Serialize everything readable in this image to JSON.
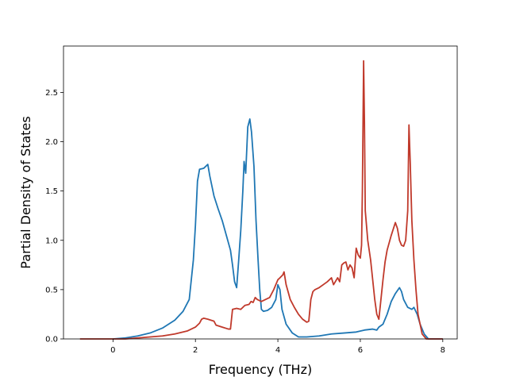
{
  "chart_data": {
    "type": "line",
    "title": "",
    "xlabel": "Frequency (THz)",
    "ylabel": "Partial Density of States",
    "xlim": [
      -1.2,
      8.35
    ],
    "ylim": [
      0,
      2.97
    ],
    "xticks": [
      0,
      2,
      4,
      6,
      8
    ],
    "yticks": [
      0.0,
      0.5,
      1.0,
      1.5,
      2.0,
      2.5
    ],
    "grid": false,
    "legend": "none",
    "series": [
      {
        "color": "#1f77b4",
        "points": [
          [
            0.0,
            0.0
          ],
          [
            0.3,
            0.01
          ],
          [
            0.6,
            0.03
          ],
          [
            0.9,
            0.06
          ],
          [
            1.2,
            0.11
          ],
          [
            1.5,
            0.19
          ],
          [
            1.7,
            0.28
          ],
          [
            1.85,
            0.4
          ],
          [
            1.9,
            0.6
          ],
          [
            1.95,
            0.8
          ],
          [
            2.0,
            1.15
          ],
          [
            2.05,
            1.6
          ],
          [
            2.1,
            1.72
          ],
          [
            2.2,
            1.73
          ],
          [
            2.3,
            1.77
          ],
          [
            2.35,
            1.65
          ],
          [
            2.45,
            1.45
          ],
          [
            2.55,
            1.32
          ],
          [
            2.65,
            1.2
          ],
          [
            2.75,
            1.05
          ],
          [
            2.85,
            0.9
          ],
          [
            2.9,
            0.75
          ],
          [
            2.95,
            0.58
          ],
          [
            3.0,
            0.52
          ],
          [
            3.05,
            0.8
          ],
          [
            3.1,
            1.1
          ],
          [
            3.15,
            1.5
          ],
          [
            3.18,
            1.8
          ],
          [
            3.22,
            1.68
          ],
          [
            3.27,
            2.15
          ],
          [
            3.32,
            2.23
          ],
          [
            3.36,
            2.1
          ],
          [
            3.42,
            1.75
          ],
          [
            3.47,
            1.2
          ],
          [
            3.52,
            0.8
          ],
          [
            3.56,
            0.5
          ],
          [
            3.6,
            0.3
          ],
          [
            3.65,
            0.28
          ],
          [
            3.75,
            0.29
          ],
          [
            3.85,
            0.32
          ],
          [
            3.95,
            0.4
          ],
          [
            4.0,
            0.55
          ],
          [
            4.05,
            0.5
          ],
          [
            4.1,
            0.3
          ],
          [
            4.2,
            0.15
          ],
          [
            4.35,
            0.06
          ],
          [
            4.5,
            0.02
          ],
          [
            4.7,
            0.02
          ],
          [
            5.0,
            0.03
          ],
          [
            5.3,
            0.05
          ],
          [
            5.6,
            0.06
          ],
          [
            5.9,
            0.07
          ],
          [
            6.1,
            0.09
          ],
          [
            6.3,
            0.1
          ],
          [
            6.4,
            0.09
          ],
          [
            6.45,
            0.12
          ],
          [
            6.55,
            0.15
          ],
          [
            6.65,
            0.25
          ],
          [
            6.75,
            0.38
          ],
          [
            6.85,
            0.46
          ],
          [
            6.95,
            0.52
          ],
          [
            7.0,
            0.48
          ],
          [
            7.05,
            0.4
          ],
          [
            7.15,
            0.32
          ],
          [
            7.25,
            0.3
          ],
          [
            7.3,
            0.32
          ],
          [
            7.38,
            0.25
          ],
          [
            7.45,
            0.15
          ],
          [
            7.55,
            0.05
          ],
          [
            7.65,
            0.0
          ],
          [
            8.0,
            0.0
          ]
        ]
      },
      {
        "color": "#c0392b",
        "points": [
          [
            -0.8,
            0.0
          ],
          [
            0.0,
            0.0
          ],
          [
            0.3,
            0.0
          ],
          [
            0.6,
            0.01
          ],
          [
            0.9,
            0.02
          ],
          [
            1.2,
            0.03
          ],
          [
            1.5,
            0.05
          ],
          [
            1.8,
            0.08
          ],
          [
            2.0,
            0.12
          ],
          [
            2.1,
            0.16
          ],
          [
            2.15,
            0.2
          ],
          [
            2.2,
            0.21
          ],
          [
            2.3,
            0.2
          ],
          [
            2.45,
            0.18
          ],
          [
            2.5,
            0.14
          ],
          [
            2.65,
            0.12
          ],
          [
            2.8,
            0.1
          ],
          [
            2.85,
            0.1
          ],
          [
            2.9,
            0.3
          ],
          [
            3.0,
            0.31
          ],
          [
            3.1,
            0.3
          ],
          [
            3.2,
            0.34
          ],
          [
            3.3,
            0.35
          ],
          [
            3.35,
            0.38
          ],
          [
            3.4,
            0.37
          ],
          [
            3.45,
            0.42
          ],
          [
            3.5,
            0.4
          ],
          [
            3.6,
            0.38
          ],
          [
            3.7,
            0.4
          ],
          [
            3.8,
            0.42
          ],
          [
            3.9,
            0.5
          ],
          [
            4.0,
            0.6
          ],
          [
            4.05,
            0.62
          ],
          [
            4.12,
            0.65
          ],
          [
            4.15,
            0.68
          ],
          [
            4.2,
            0.55
          ],
          [
            4.3,
            0.4
          ],
          [
            4.4,
            0.32
          ],
          [
            4.5,
            0.25
          ],
          [
            4.6,
            0.2
          ],
          [
            4.7,
            0.17
          ],
          [
            4.75,
            0.18
          ],
          [
            4.8,
            0.4
          ],
          [
            4.85,
            0.48
          ],
          [
            4.9,
            0.5
          ],
          [
            5.0,
            0.52
          ],
          [
            5.1,
            0.55
          ],
          [
            5.2,
            0.58
          ],
          [
            5.3,
            0.62
          ],
          [
            5.35,
            0.55
          ],
          [
            5.45,
            0.62
          ],
          [
            5.5,
            0.58
          ],
          [
            5.55,
            0.75
          ],
          [
            5.6,
            0.77
          ],
          [
            5.65,
            0.78
          ],
          [
            5.7,
            0.7
          ],
          [
            5.75,
            0.75
          ],
          [
            5.8,
            0.72
          ],
          [
            5.85,
            0.62
          ],
          [
            5.9,
            0.92
          ],
          [
            5.95,
            0.85
          ],
          [
            6.0,
            0.82
          ],
          [
            6.03,
            0.95
          ],
          [
            6.05,
            1.5
          ],
          [
            6.08,
            2.82
          ],
          [
            6.1,
            2.2
          ],
          [
            6.12,
            1.3
          ],
          [
            6.18,
            1.0
          ],
          [
            6.25,
            0.8
          ],
          [
            6.3,
            0.6
          ],
          [
            6.35,
            0.4
          ],
          [
            6.4,
            0.25
          ],
          [
            6.45,
            0.2
          ],
          [
            6.5,
            0.4
          ],
          [
            6.55,
            0.6
          ],
          [
            6.6,
            0.78
          ],
          [
            6.65,
            0.9
          ],
          [
            6.75,
            1.05
          ],
          [
            6.85,
            1.18
          ],
          [
            6.9,
            1.12
          ],
          [
            6.95,
            1.0
          ],
          [
            7.0,
            0.95
          ],
          [
            7.05,
            0.94
          ],
          [
            7.1,
            1.0
          ],
          [
            7.15,
            1.3
          ],
          [
            7.18,
            2.17
          ],
          [
            7.21,
            1.8
          ],
          [
            7.25,
            1.2
          ],
          [
            7.3,
            0.8
          ],
          [
            7.35,
            0.5
          ],
          [
            7.4,
            0.25
          ],
          [
            7.5,
            0.05
          ],
          [
            7.6,
            0.0
          ],
          [
            8.0,
            0.0
          ]
        ]
      }
    ]
  }
}
